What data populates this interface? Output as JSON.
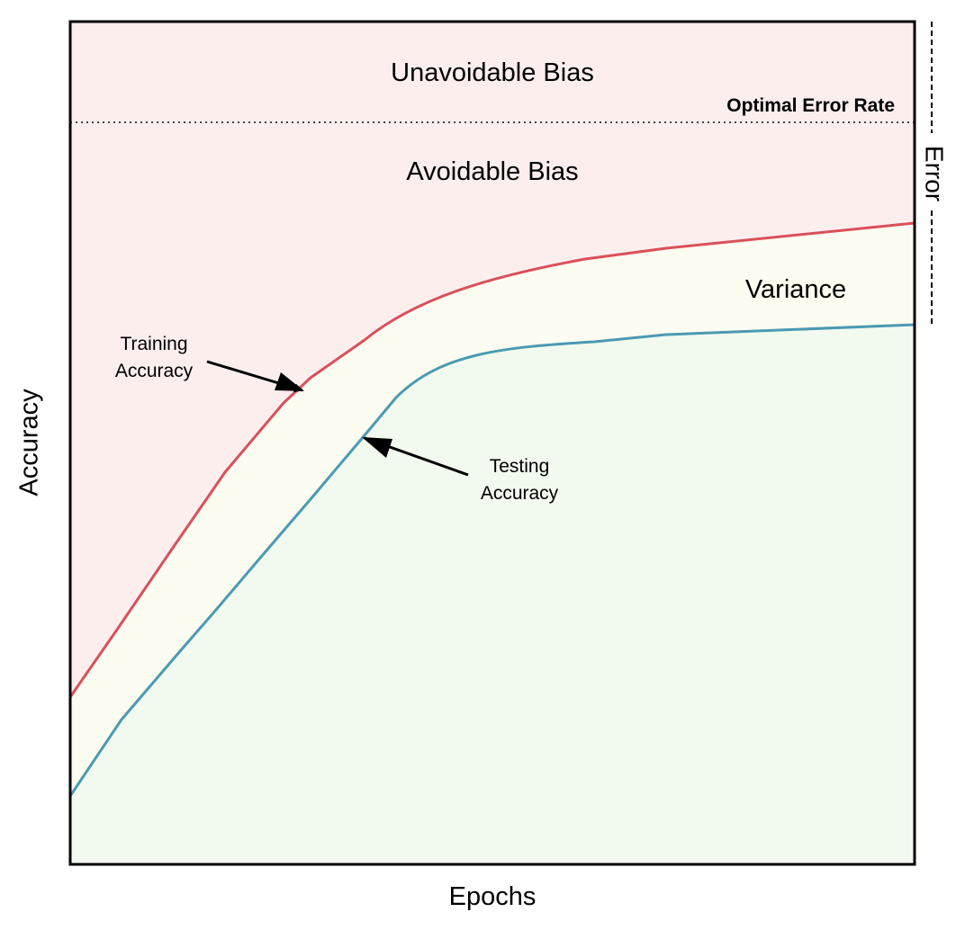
{
  "labels": {
    "unavoidable_bias": "Unavoidable Bias",
    "optimal_error_rate": "Optimal Error Rate",
    "avoidable_bias": "Avoidable Bias",
    "variance": "Variance",
    "training_accuracy_line1": "Training",
    "training_accuracy_line2": "Accuracy",
    "testing_accuracy_line1": "Testing",
    "testing_accuracy_line2": "Accuracy",
    "x_axis": "Epochs",
    "y_axis": "Accuracy",
    "error_bracket": "Error"
  },
  "colors": {
    "bias_region": "#fdeeee",
    "variance_region": "#fdfcf0",
    "test_region": "#f2f9ee",
    "training_line": "#d9505a",
    "testing_line": "#4a9ab3",
    "frame": "#000000"
  }
}
